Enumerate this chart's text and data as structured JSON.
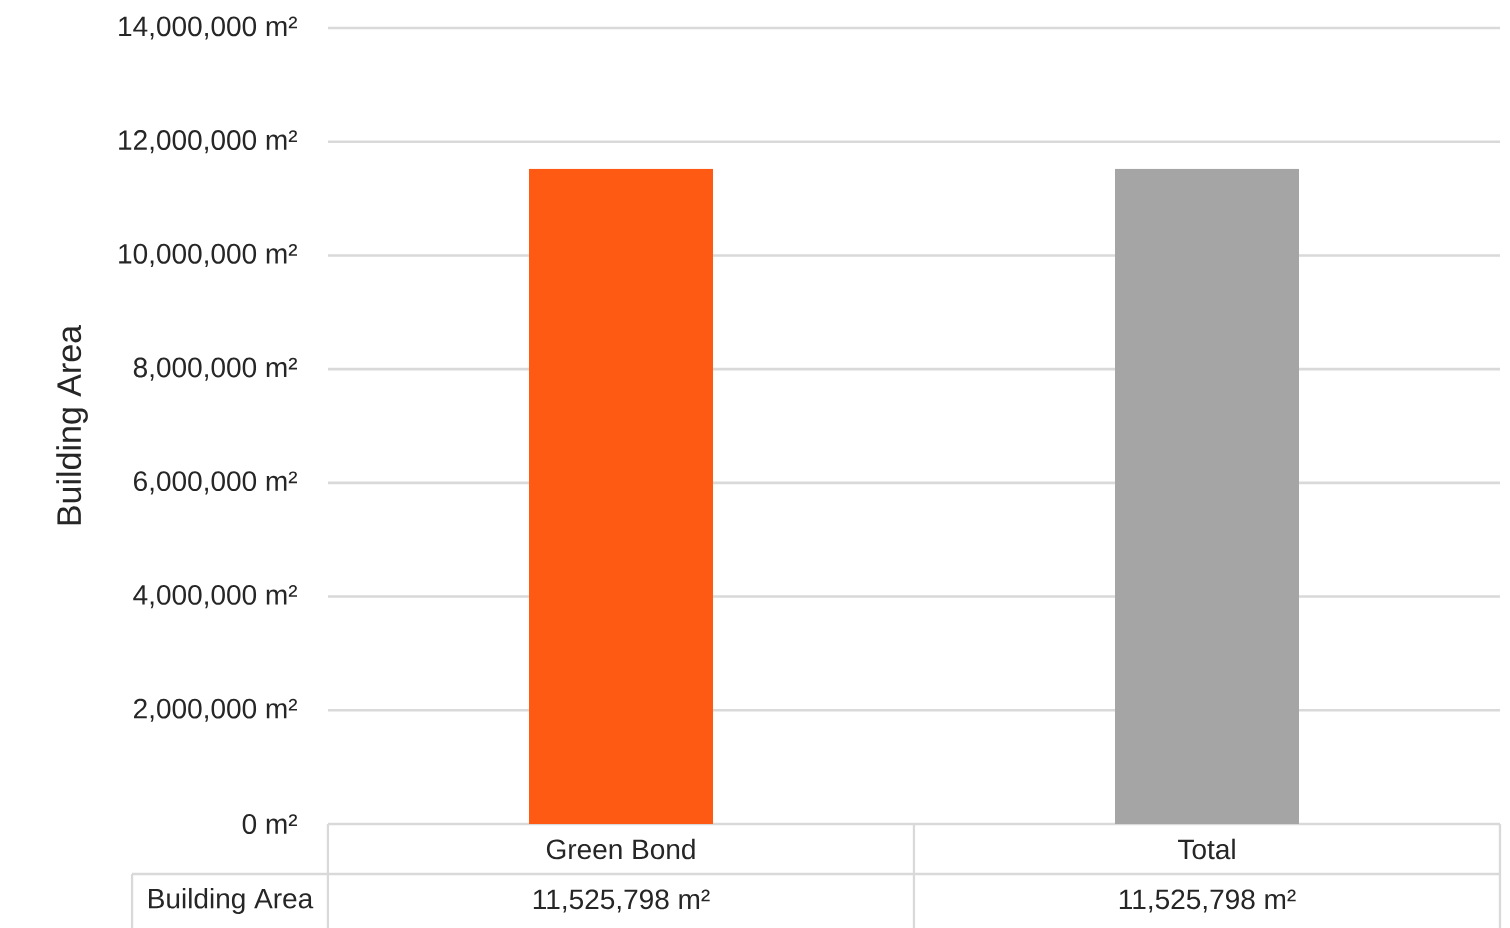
{
  "chart_data": {
    "type": "bar",
    "ylabel": "Building Area",
    "categories": [
      "Green Bond",
      "Total"
    ],
    "series": [
      {
        "name": "Building Area",
        "colors": [
          "#ff5a14",
          "#a5a5a5"
        ],
        "values": [
          11525798,
          11525798
        ],
        "value_labels": [
          "11,525,798 m²",
          "11,525,798 m²"
        ]
      }
    ],
    "ylim": [
      0,
      14000000
    ],
    "yticks": [
      {
        "value": 0,
        "label": "0 m²"
      },
      {
        "value": 2000000,
        "label": "2,000,000 m²"
      },
      {
        "value": 4000000,
        "label": "4,000,000 m²"
      },
      {
        "value": 6000000,
        "label": "6,000,000 m²"
      },
      {
        "value": 8000000,
        "label": "8,000,000 m²"
      },
      {
        "value": 10000000,
        "label": "10,000,000 m²"
      },
      {
        "value": 12000000,
        "label": "12,000,000 m²"
      },
      {
        "value": 14000000,
        "label": "14,000,000 m²"
      }
    ],
    "grid": "y"
  }
}
